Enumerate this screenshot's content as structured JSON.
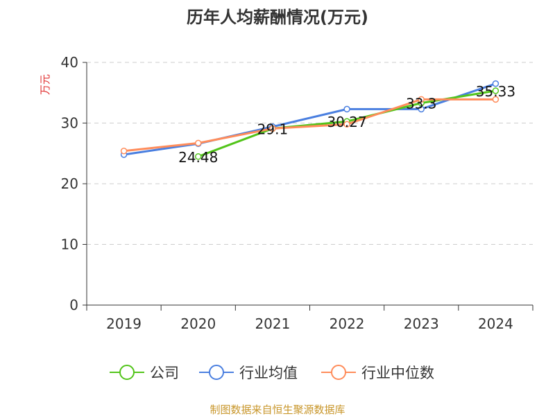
{
  "chart_data": {
    "type": "line",
    "title": "历年人均薪酬情况(万元)",
    "ylabel": "万元",
    "categories": [
      "2019",
      "2020",
      "2021",
      "2022",
      "2023",
      "2024"
    ],
    "ylim": [
      0,
      40
    ],
    "yticks": [
      0,
      10,
      20,
      30,
      40
    ],
    "grid": true,
    "legend_position": "bottom",
    "series": [
      {
        "name": "公司",
        "color": "#52c41a",
        "values": [
          null,
          24.48,
          29.1,
          30.27,
          33.3,
          35.33
        ],
        "labels": [
          null,
          "24.48",
          "29.1",
          "30.27",
          "33.3",
          "35.33"
        ]
      },
      {
        "name": "行业均值",
        "color": "#4a7fe0",
        "values": [
          24.8,
          26.6,
          29.4,
          32.3,
          32.3,
          36.5
        ]
      },
      {
        "name": "行业中位数",
        "color": "#ff8c5a",
        "values": [
          25.4,
          26.7,
          29.1,
          29.8,
          33.9,
          33.9
        ]
      }
    ]
  },
  "footer": "制图数据来自恒生聚源数据库"
}
